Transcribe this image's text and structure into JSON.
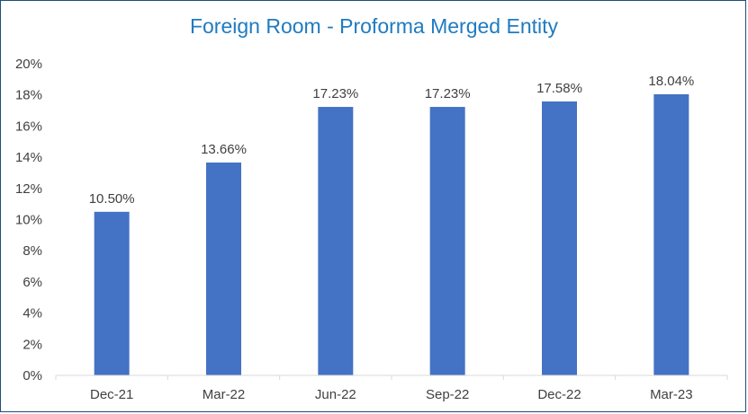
{
  "chart_data": {
    "type": "bar",
    "title": "Foreign Room - Proforma Merged Entity",
    "xlabel": "",
    "ylabel": "",
    "categories": [
      "Dec-21",
      "Mar-22",
      "Jun-22",
      "Sep-22",
      "Dec-22",
      "Mar-23"
    ],
    "values": [
      10.5,
      13.66,
      17.23,
      17.23,
      17.58,
      18.04
    ],
    "data_labels": [
      "10.50%",
      "13.66%",
      "17.23%",
      "17.23%",
      "17.58%",
      "18.04%"
    ],
    "ylim": [
      0,
      20
    ],
    "y_ticks": [
      "0%",
      "2%",
      "4%",
      "6%",
      "8%",
      "10%",
      "12%",
      "14%",
      "16%",
      "18%",
      "20%"
    ],
    "grid": false,
    "legend": "none",
    "bar_color": "#4472c4",
    "title_color": "#1f7bc1",
    "border_color": "#1f4e79"
  }
}
